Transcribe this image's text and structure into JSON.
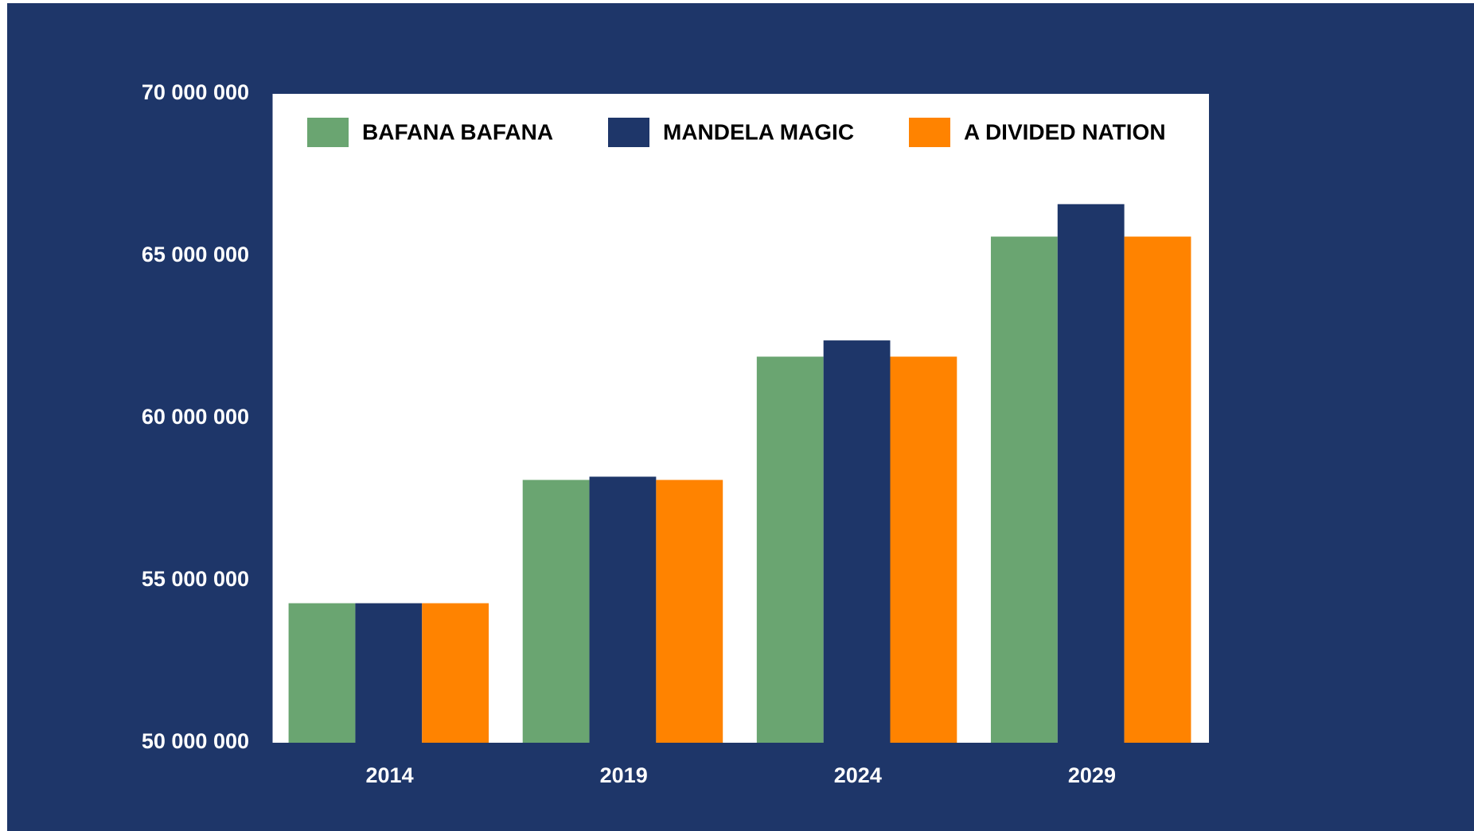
{
  "chart_data": {
    "type": "bar",
    "categories": [
      "2014",
      "2019",
      "2024",
      "2029"
    ],
    "series": [
      {
        "name": "BAFANA BAFANA",
        "color": "#6aa571",
        "values": [
          54300000,
          58100000,
          61900000,
          65600000
        ]
      },
      {
        "name": "MANDELA MAGIC",
        "color": "#1e3669",
        "values": [
          54300000,
          58200000,
          62400000,
          66600000
        ]
      },
      {
        "name": "A DIVIDED NATION",
        "color": "#ff8300",
        "values": [
          54300000,
          58100000,
          61900000,
          65600000
        ]
      }
    ],
    "ylim": [
      50000000,
      70000000
    ],
    "yticks": [
      {
        "value": 50000000,
        "label": "50 000 000"
      },
      {
        "value": 55000000,
        "label": "55 000 000"
      },
      {
        "value": 60000000,
        "label": "60 000 000"
      },
      {
        "value": 65000000,
        "label": "65 000 000"
      },
      {
        "value": 70000000,
        "label": "70 000 000"
      }
    ],
    "legend": "top",
    "grid": false
  }
}
